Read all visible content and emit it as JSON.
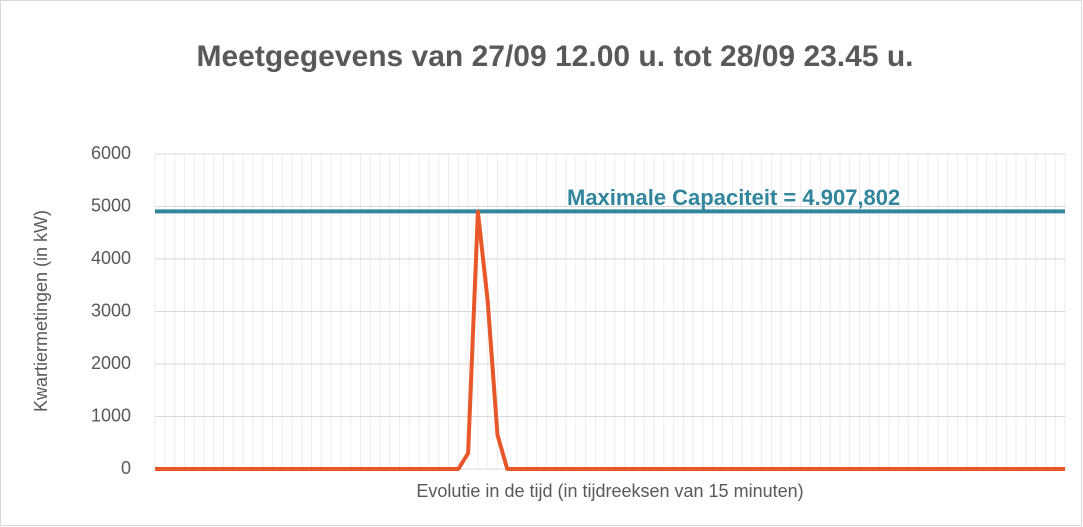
{
  "chart_data": {
    "type": "line",
    "title": "Meetgegevens van 27/09 12.00 u. tot 28/09 23.45 u.",
    "y_label": "Kwartiermetingen (in kW)",
    "x_label": "Evolutie in de tijd (in tijdreeksen van 15 minuten)",
    "ylim": [
      0,
      6000
    ],
    "yticks": [
      0,
      1000,
      2000,
      3000,
      4000,
      5000,
      6000
    ],
    "grid": true,
    "series": [
      {
        "name": "Kwartiermetingen",
        "color": "#e8572a",
        "values": [
          0,
          0,
          0,
          0,
          0,
          0,
          0,
          0,
          0,
          0,
          0,
          0,
          0,
          0,
          0,
          0,
          0,
          0,
          0,
          0,
          0,
          0,
          0,
          0,
          0,
          0,
          0,
          0,
          0,
          0,
          0,
          0,
          300,
          4900,
          3200,
          650,
          0,
          0,
          0,
          0,
          0,
          0,
          0,
          0,
          0,
          0,
          0,
          0,
          0,
          0,
          0,
          0,
          0,
          0,
          0,
          0,
          0,
          0,
          0,
          0,
          0,
          0,
          0,
          0,
          0,
          0,
          0,
          0,
          0,
          0,
          0,
          0,
          0,
          0,
          0,
          0,
          0,
          0,
          0,
          0,
          0,
          0,
          0,
          0,
          0,
          0,
          0,
          0,
          0,
          0,
          0,
          0,
          0,
          0
        ]
      }
    ],
    "reference_line": {
      "value": 4907.802,
      "color": "#31859c",
      "label": "Maximale Capaciteit = 4.907,802"
    }
  }
}
